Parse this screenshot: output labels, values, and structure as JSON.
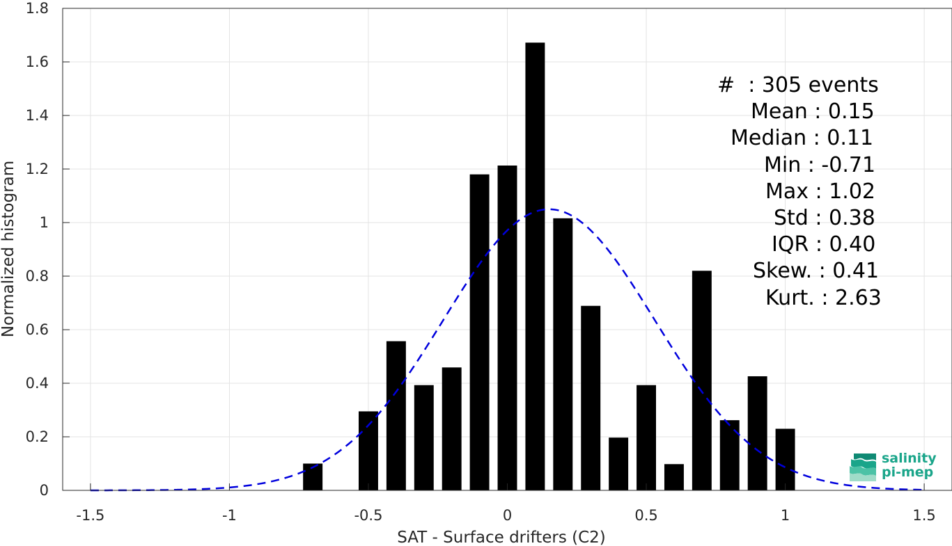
{
  "chart_data": {
    "type": "bar",
    "xlabel": "SAT - Surface drifters (C2)",
    "ylabel": "Normalized histogram",
    "xlim": [
      -1.6,
      1.6
    ],
    "ylim": [
      0,
      1.8
    ],
    "xticks": [
      -1.5,
      -1,
      -0.5,
      0,
      0.5,
      1,
      1.5
    ],
    "xtick_labels": [
      "-1.5",
      "-1",
      "-0.5",
      "0",
      "0.5",
      "1",
      "1.5"
    ],
    "yticks": [
      0,
      0.2,
      0.4,
      0.6,
      0.8,
      1,
      1.2,
      1.4,
      1.6,
      1.8
    ],
    "ytick_labels": [
      "0",
      "0.2",
      "0.4",
      "0.6",
      "0.8",
      "1",
      "1.2",
      "1.4",
      "1.6",
      "1.8"
    ],
    "grid": true,
    "bar_color": "#000000",
    "bar_width": 0.07,
    "bars": [
      {
        "x": -0.7,
        "y": 0.1
      },
      {
        "x": -0.5,
        "y": 0.295
      },
      {
        "x": -0.4,
        "y": 0.557
      },
      {
        "x": -0.3,
        "y": 0.393
      },
      {
        "x": -0.2,
        "y": 0.459
      },
      {
        "x": -0.1,
        "y": 1.18
      },
      {
        "x": 0.0,
        "y": 1.213
      },
      {
        "x": 0.1,
        "y": 1.672
      },
      {
        "x": 0.2,
        "y": 1.016
      },
      {
        "x": 0.3,
        "y": 0.689
      },
      {
        "x": 0.4,
        "y": 0.197
      },
      {
        "x": 0.5,
        "y": 0.393
      },
      {
        "x": 0.6,
        "y": 0.098
      },
      {
        "x": 0.7,
        "y": 0.82
      },
      {
        "x": 0.8,
        "y": 0.262
      },
      {
        "x": 0.9,
        "y": 0.426
      },
      {
        "x": 1.0,
        "y": 0.23
      }
    ],
    "fit_curve": {
      "style": "dashed",
      "color": "#0000dd",
      "mean": 0.15,
      "std": 0.38,
      "x_range": [
        -1.5,
        1.5
      ]
    },
    "stats_lines": [
      "#  : 305 events",
      "Mean : 0.15",
      "Median : 0.11",
      "Min : -0.71",
      "Max : 1.02",
      "Std : 0.38",
      "IQR : 0.40",
      "Skew. : 0.41",
      "Kurt. : 2.63"
    ]
  },
  "logo": {
    "line1": "salinity",
    "line2": "pi-mep",
    "color": "#1aa58a"
  }
}
